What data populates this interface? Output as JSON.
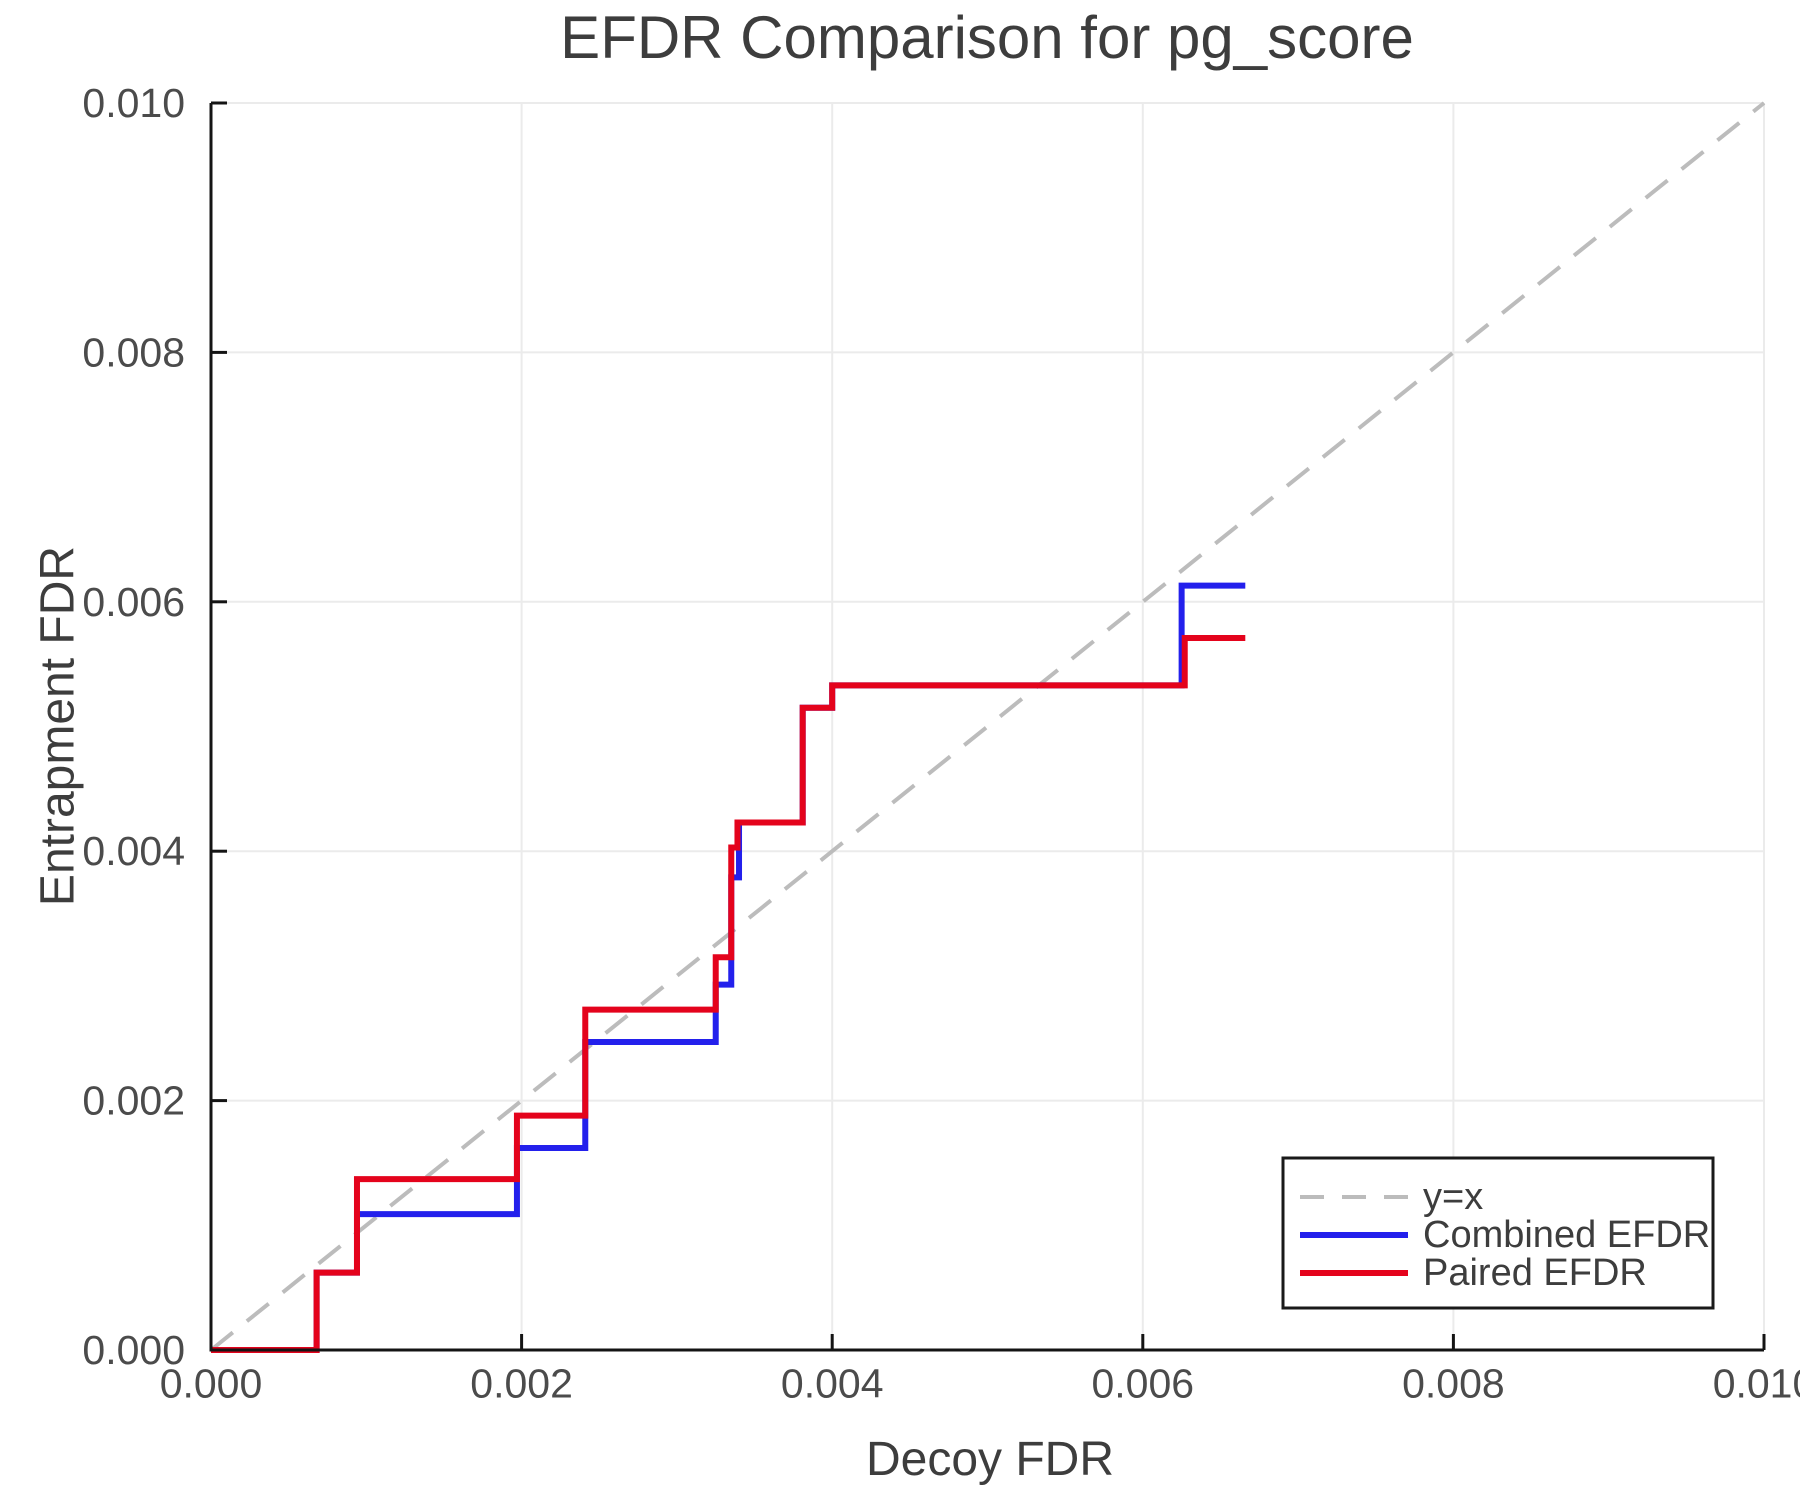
{
  "chart_data": {
    "type": "line",
    "title": "EFDR Comparison for pg_score",
    "xlabel": "Decoy FDR",
    "ylabel": "Entrapment FDR",
    "xlim": [
      0.0,
      0.01
    ],
    "ylim": [
      0.0,
      0.01
    ],
    "grid": true,
    "xticks": [
      0.0,
      0.002,
      0.004,
      0.006,
      0.008,
      0.01
    ],
    "yticks": [
      0.0,
      0.002,
      0.004,
      0.006,
      0.008,
      0.01
    ],
    "xtick_labels": [
      "0.000",
      "0.002",
      "0.004",
      "0.006",
      "0.008",
      "0.010"
    ],
    "ytick_labels": [
      "0.000",
      "0.002",
      "0.004",
      "0.006",
      "0.008",
      "0.010"
    ],
    "legend_position": "bottom-right",
    "series": [
      {
        "name": "y=x",
        "style": "dashed",
        "color": "#bcbcbc",
        "points": [
          [
            0.0,
            0.0
          ],
          [
            0.01,
            0.01
          ]
        ]
      },
      {
        "name": "Combined EFDR",
        "style": "solid",
        "color": "#2320ec",
        "points": [
          [
            0.0,
            0.0
          ],
          [
            0.00068,
            0.0
          ],
          [
            0.00068,
            0.00062
          ],
          [
            0.00094,
            0.00062
          ],
          [
            0.00094,
            0.00109
          ],
          [
            0.00197,
            0.00109
          ],
          [
            0.00197,
            0.00162
          ],
          [
            0.00241,
            0.00162
          ],
          [
            0.00241,
            0.00247
          ],
          [
            0.00325,
            0.00247
          ],
          [
            0.00325,
            0.00293
          ],
          [
            0.00335,
            0.00293
          ],
          [
            0.00335,
            0.00379
          ],
          [
            0.0034,
            0.00379
          ],
          [
            0.0034,
            0.00423
          ],
          [
            0.00381,
            0.00423
          ],
          [
            0.00381,
            0.00515
          ],
          [
            0.004,
            0.00515
          ],
          [
            0.004,
            0.00533
          ],
          [
            0.00625,
            0.00533
          ],
          [
            0.00625,
            0.00613
          ],
          [
            0.00666,
            0.00613
          ]
        ]
      },
      {
        "name": "Paired EFDR",
        "style": "solid",
        "color": "#e4031c",
        "points": [
          [
            0.0,
            0.0
          ],
          [
            0.00068,
            0.0
          ],
          [
            0.00068,
            0.00062
          ],
          [
            0.00094,
            0.00062
          ],
          [
            0.00094,
            0.00137
          ],
          [
            0.00197,
            0.00137
          ],
          [
            0.00197,
            0.00188
          ],
          [
            0.00241,
            0.00188
          ],
          [
            0.00241,
            0.00273
          ],
          [
            0.00325,
            0.00273
          ],
          [
            0.00325,
            0.00315
          ],
          [
            0.00335,
            0.00315
          ],
          [
            0.00335,
            0.00403
          ],
          [
            0.00339,
            0.00403
          ],
          [
            0.00339,
            0.00423
          ],
          [
            0.00381,
            0.00423
          ],
          [
            0.00381,
            0.00515
          ],
          [
            0.004,
            0.00515
          ],
          [
            0.004,
            0.00533
          ],
          [
            0.00627,
            0.00533
          ],
          [
            0.00627,
            0.00571
          ],
          [
            0.00666,
            0.00571
          ]
        ]
      }
    ]
  }
}
